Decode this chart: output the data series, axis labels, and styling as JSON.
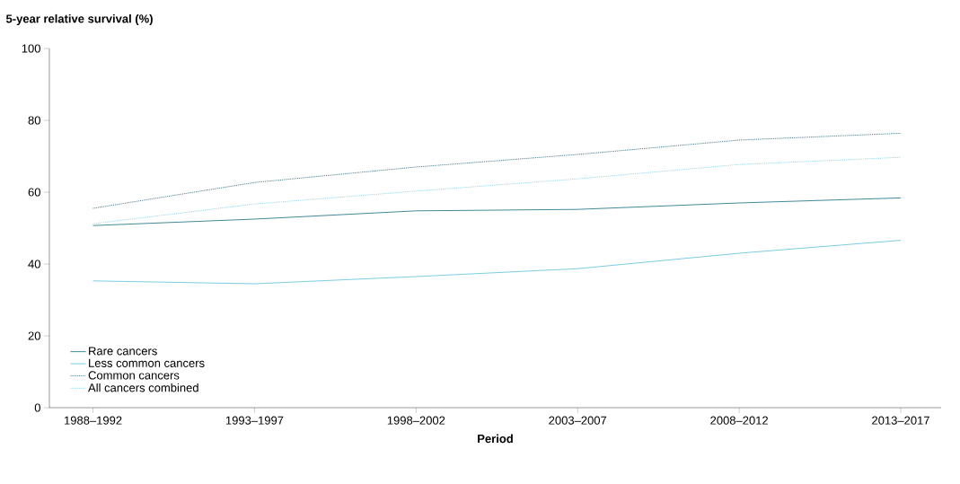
{
  "chart_data": {
    "type": "line",
    "ylabel": "5-year relative survival (%)",
    "xlabel": "Period",
    "categories": [
      "1988–1992",
      "1993–1997",
      "1998–2002",
      "2003–2007",
      "2008–2012",
      "2013–2017"
    ],
    "series": [
      {
        "name": "Rare cancers",
        "color": "#2e7d8f",
        "line_style": "solid",
        "values": [
          50.7,
          52.5,
          54.8,
          55.2,
          57.0,
          58.4
        ]
      },
      {
        "name": "Less common cancers",
        "color": "#6ec6e0",
        "line_style": "solid",
        "values": [
          35.3,
          34.5,
          36.5,
          38.7,
          43.0,
          46.6
        ]
      },
      {
        "name": "Common cancers",
        "color": "#1f5f75",
        "line_style": "dotted",
        "values": [
          55.5,
          62.7,
          67.0,
          70.5,
          74.5,
          76.4
        ]
      },
      {
        "name": "All cancers combined",
        "color": "#7dcfe8",
        "line_style": "dotted",
        "values": [
          51.2,
          56.7,
          60.3,
          63.7,
          67.7,
          69.7
        ]
      }
    ],
    "ylim": [
      0,
      100
    ],
    "yticks": [
      0,
      20,
      40,
      60,
      80,
      100
    ],
    "grid": false,
    "legend": "bottom left",
    "marker": "none"
  }
}
